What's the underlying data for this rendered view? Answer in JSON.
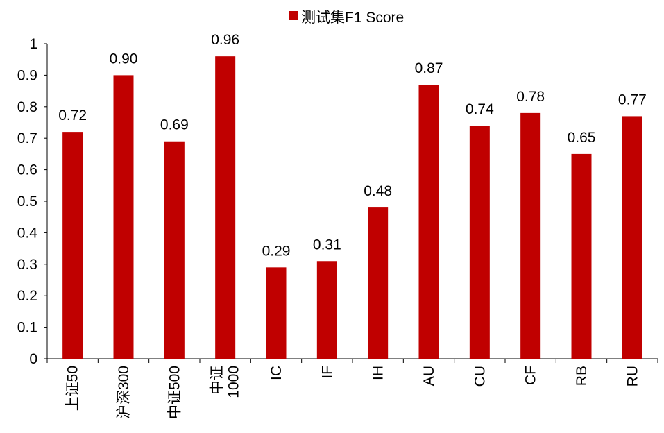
{
  "chart_data": {
    "type": "bar",
    "legend": {
      "label": "测试集F1 Score",
      "position": "top-center"
    },
    "categories": [
      "上证50",
      "沪深300",
      "中证500",
      "中证1000",
      "IC",
      "IF",
      "IH",
      "AU",
      "CU",
      "CF",
      "RB",
      "RU"
    ],
    "category_lines": [
      [
        "上证50"
      ],
      [
        "沪深300"
      ],
      [
        "中证500"
      ],
      [
        "中证",
        "1000"
      ],
      [
        "IC"
      ],
      [
        "IF"
      ],
      [
        "IH"
      ],
      [
        "AU"
      ],
      [
        "CU"
      ],
      [
        "CF"
      ],
      [
        "RB"
      ],
      [
        "RU"
      ]
    ],
    "series": [
      {
        "name": "测试集F1 Score",
        "values": [
          0.72,
          0.9,
          0.69,
          0.96,
          0.29,
          0.31,
          0.48,
          0.87,
          0.74,
          0.78,
          0.65,
          0.77
        ],
        "labels": [
          "0.72",
          "0.90",
          "0.69",
          "0.96",
          "0.29",
          "0.31",
          "0.48",
          "0.87",
          "0.74",
          "0.78",
          "0.65",
          "0.77"
        ],
        "color": "#C00000"
      }
    ],
    "ylim": [
      0,
      1
    ],
    "yticks": [
      0,
      0.1,
      0.2,
      0.3,
      0.4,
      0.5,
      0.6,
      0.7,
      0.8,
      0.9,
      1
    ],
    "ytick_labels": [
      "0",
      "0.1",
      "0.2",
      "0.3",
      "0.4",
      "0.5",
      "0.6",
      "0.7",
      "0.8",
      "0.9",
      "1"
    ],
    "grid": false,
    "xlabel": "",
    "ylabel": ""
  }
}
